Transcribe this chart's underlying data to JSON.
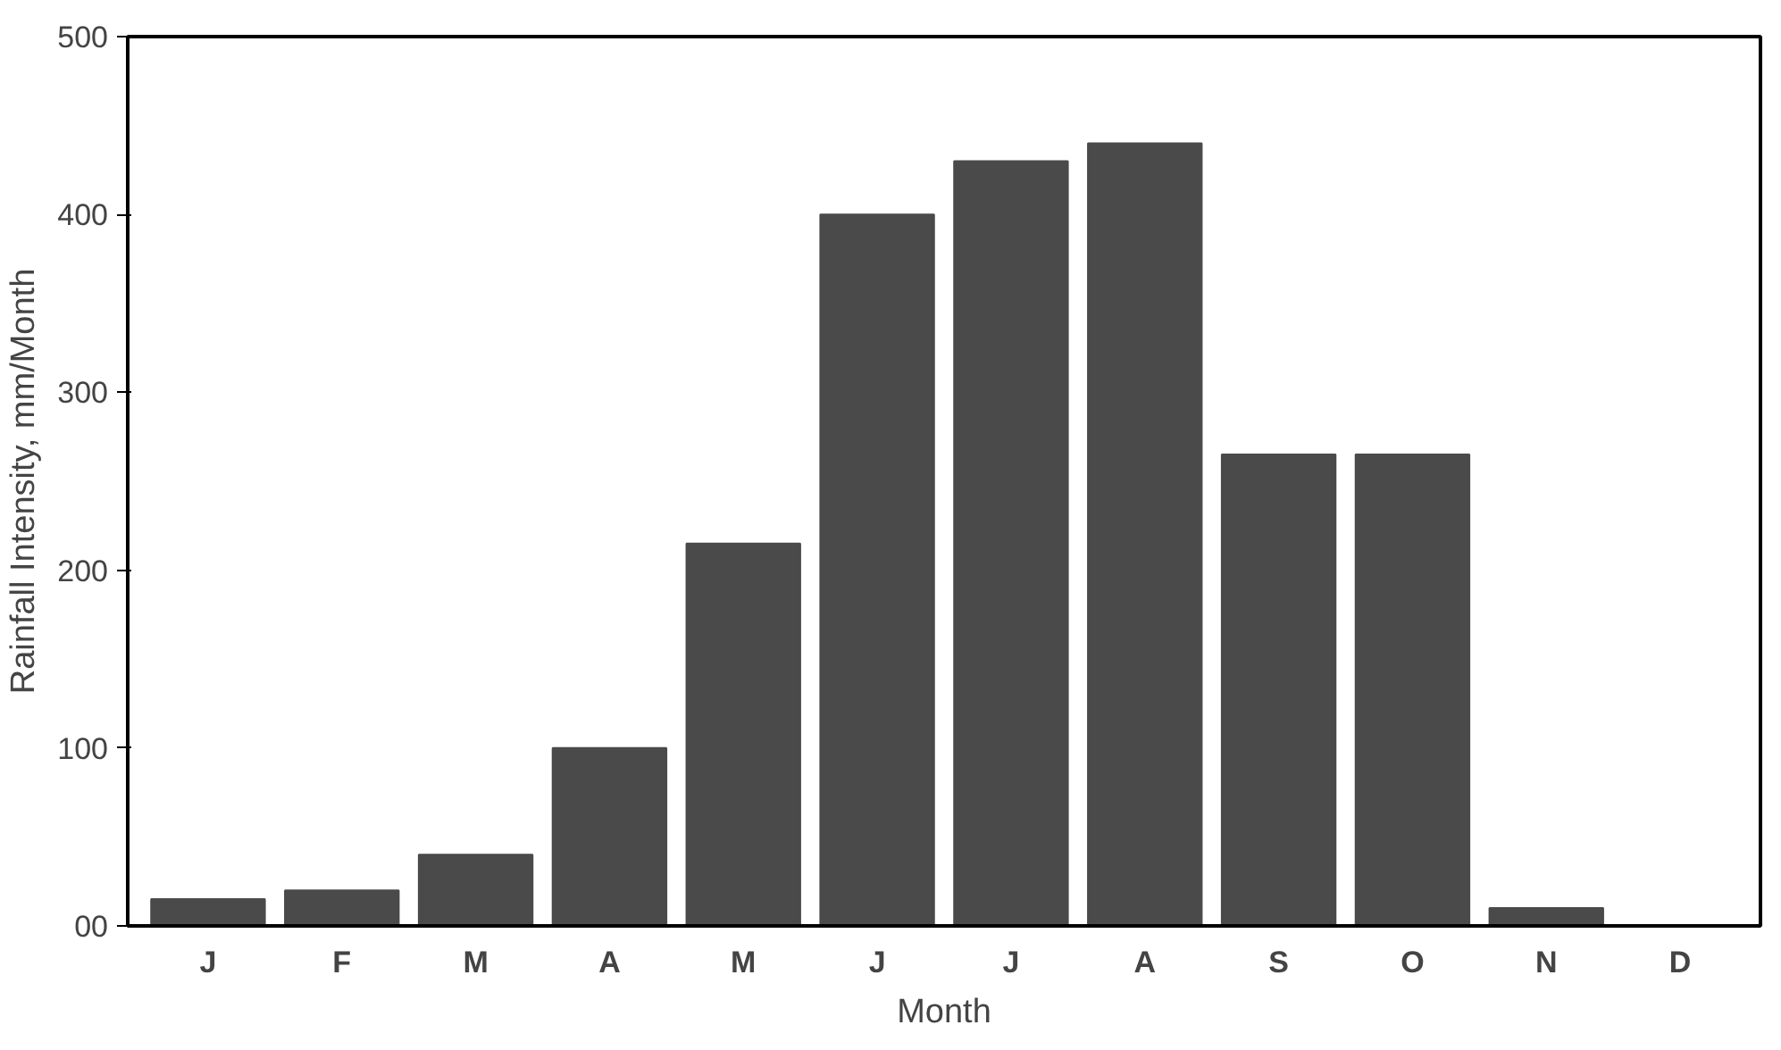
{
  "chart_data": {
    "type": "bar",
    "xlabel": "Month",
    "ylabel": "Rainfall Intensity, mm/Month",
    "categories": [
      "J",
      "F",
      "M",
      "A",
      "M",
      "J",
      "J",
      "A",
      "S",
      "O",
      "N",
      "D"
    ],
    "values": [
      15,
      20,
      40,
      100,
      215,
      400,
      430,
      440,
      265,
      265,
      10,
      0
    ],
    "color": "#4a4a4a",
    "ylim": [
      0,
      500
    ],
    "yticks": [
      {
        "value": 0,
        "label": "00"
      },
      100,
      200,
      300,
      400,
      500
    ],
    "grid": false
  }
}
